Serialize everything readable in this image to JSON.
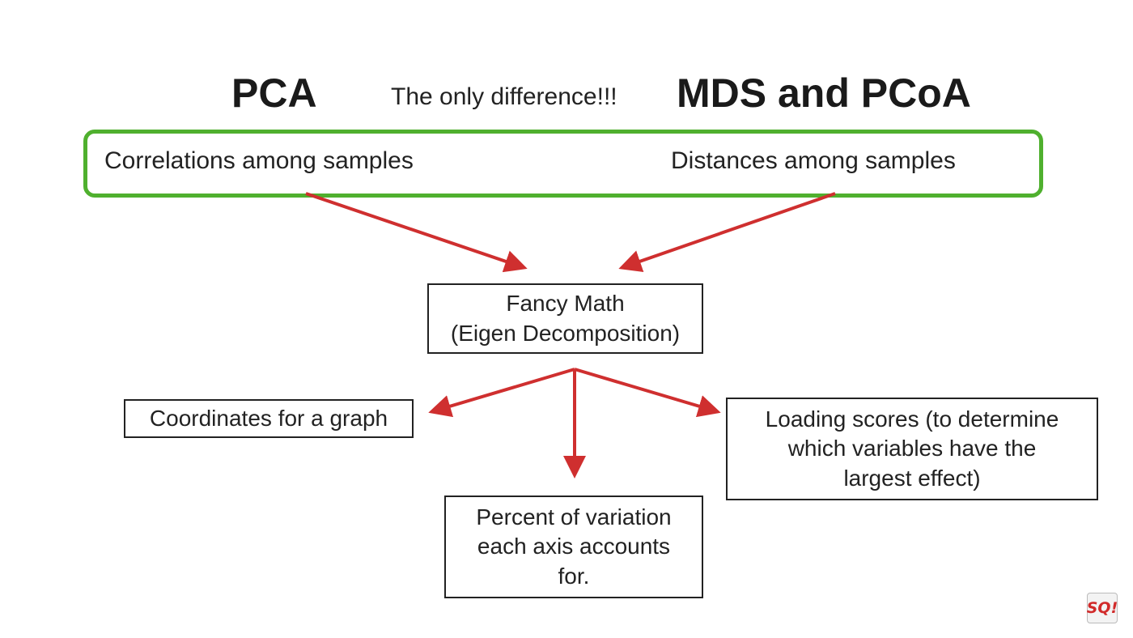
{
  "colors": {
    "arrow": "#cf2f2f",
    "green_border": "#4fb02e",
    "box_border": "#222222"
  },
  "headings": {
    "left": "PCA",
    "middle": "The only difference!!!",
    "right": "MDS and PCoA"
  },
  "input_row": {
    "left": "Correlations among samples",
    "right": "Distances among samples"
  },
  "center_box": {
    "line1": "Fancy Math",
    "line2": "(Eigen Decomposition)"
  },
  "outputs": {
    "coordinates": "Coordinates for a graph",
    "percent_variation": {
      "line1": "Percent of variation",
      "line2": "each axis accounts",
      "line3": "for."
    },
    "loading_scores": {
      "line1": "Loading scores (to determine",
      "line2": "which variables have the",
      "line3": "largest effect)"
    }
  },
  "badge": {
    "text": "SQ!",
    "icon": "statquest-logo-icon"
  }
}
